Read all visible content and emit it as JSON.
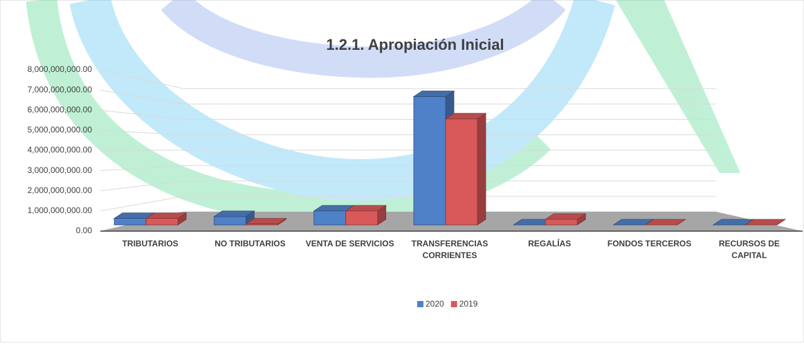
{
  "chart_data": {
    "type": "bar3d",
    "title": "1.2.1. Apropiación Inicial",
    "categories": [
      "TRIBUTARIOS",
      "NO TRIBUTARIOS",
      "VENTA DE SERVICIOS",
      "TRANSFERENCIAS CORRIENTES",
      "REGALÍAS",
      "FONDOS TERCEROS",
      "RECURSOS DE CAPITAL"
    ],
    "series": [
      {
        "name": "2020",
        "color": "#4f81c8",
        "values": [
          350000000,
          450000000,
          750000000,
          6900000000,
          0,
          0,
          0
        ]
      },
      {
        "name": "2019",
        "color": "#d9595a",
        "values": [
          350000000,
          50000000,
          750000000,
          5700000000,
          300000000,
          0,
          0
        ]
      }
    ],
    "ylim": [
      0,
      8000000000
    ],
    "yticks": [
      {
        "value": 0,
        "label": "0.00"
      },
      {
        "value": 1000000000,
        "label": "1,000,000,000.00"
      },
      {
        "value": 2000000000,
        "label": "2,000,000,000.00"
      },
      {
        "value": 3000000000,
        "label": "3,000,000,000.00"
      },
      {
        "value": 4000000000,
        "label": "4,000,000,000.00"
      },
      {
        "value": 5000000000,
        "label": "5,000,000,000.00"
      },
      {
        "value": 6000000000,
        "label": "6,000,000,000.00"
      },
      {
        "value": 7000000000,
        "label": "7,000,000,000.00"
      },
      {
        "value": 8000000000,
        "label": "8,000,000,000.00"
      }
    ],
    "grid": true,
    "legend": "bottom"
  }
}
